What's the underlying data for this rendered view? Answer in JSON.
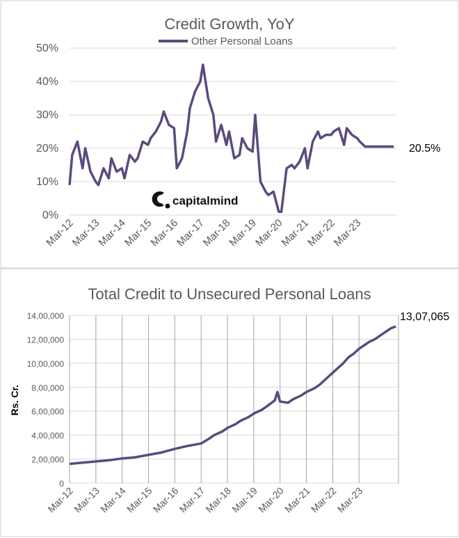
{
  "chart_data": [
    {
      "type": "line",
      "title": "Credit Growth, YoY",
      "legend": "top-center",
      "grid": "horizontal",
      "ylim": [
        0,
        50
      ],
      "y_ticks": [
        "0%",
        "10%",
        "20%",
        "30%",
        "40%",
        "50%"
      ],
      "x_ticks": [
        "Mar-12",
        "Mar-13",
        "Mar-14",
        "Mar-15",
        "Mar-16",
        "Mar-17",
        "Mar-18",
        "Mar-19",
        "Mar-20",
        "Mar-21",
        "Mar-22",
        "Mar-23"
      ],
      "end_label": "20.5%",
      "logo_text": "capitalmind",
      "color": "#5b4a7d",
      "series": [
        {
          "name": "Other Personal Loans",
          "x": [
            2012.2,
            2012.3,
            2012.5,
            2012.7,
            2012.8,
            2013.0,
            2013.2,
            2013.3,
            2013.5,
            2013.7,
            2013.8,
            2014.0,
            2014.2,
            2014.3,
            2014.5,
            2014.7,
            2014.8,
            2015.0,
            2015.2,
            2015.3,
            2015.5,
            2015.7,
            2015.8,
            2016.0,
            2016.2,
            2016.3,
            2016.5,
            2016.7,
            2016.8,
            2017.0,
            2017.2,
            2017.3,
            2017.5,
            2017.7,
            2017.8,
            2018.0,
            2018.2,
            2018.3,
            2018.5,
            2018.7,
            2018.8,
            2019.0,
            2019.2,
            2019.3,
            2019.5,
            2019.7,
            2019.8,
            2020.0,
            2020.2,
            2020.3,
            2020.5,
            2020.7,
            2020.8,
            2021.0,
            2021.2,
            2021.3,
            2021.5,
            2021.7,
            2021.8,
            2022.0,
            2022.2,
            2022.3,
            2022.5,
            2022.7,
            2022.8,
            2023.0,
            2023.2,
            2023.3,
            2023.5,
            2023.7,
            2023.8,
            2024.0,
            2024.2,
            2024.3,
            2024.5,
            2024.6
          ],
          "values": [
            9,
            18,
            22,
            14,
            20,
            13,
            10,
            9,
            14,
            11,
            17,
            13,
            14,
            11,
            18,
            16,
            17,
            22,
            21,
            23,
            25,
            28,
            31,
            27,
            26,
            14,
            17,
            25,
            32,
            37,
            40,
            45,
            35,
            30,
            22,
            27,
            21,
            25,
            17,
            18,
            23,
            20,
            19,
            30,
            10,
            7,
            6,
            7,
            1,
            1,
            14,
            15,
            14,
            16,
            20,
            14,
            22,
            25,
            23,
            24,
            24,
            25,
            26,
            21,
            26,
            24,
            23,
            22,
            20.5,
            20.5,
            20.5,
            20.5,
            20.5,
            20.5,
            20.5,
            20.5
          ]
        }
      ]
    },
    {
      "type": "line",
      "title": "Total Credit to Unsecured Personal Loans",
      "ylabel": "Rs. Cr.",
      "grid": "both",
      "ylim": [
        0,
        1400000
      ],
      "y_ticks": [
        "0",
        "2,00,000",
        "4,00,000",
        "6,00,000",
        "8,00,000",
        "10,00,000",
        "12,00,000",
        "14,00,000"
      ],
      "x_ticks": [
        "Mar-12",
        "Mar-13",
        "Mar-14",
        "Mar-15",
        "Mar-16",
        "Mar-17",
        "Mar-18",
        "Mar-19",
        "Mar-20",
        "Mar-21",
        "Mar-22",
        "Mar-23"
      ],
      "end_label": "13,07,065",
      "color": "#5b4a7d",
      "series": [
        {
          "x": [
            2012.2,
            2012.7,
            2013.2,
            2013.7,
            2014.2,
            2014.7,
            2015.2,
            2015.7,
            2016.2,
            2016.7,
            2017.2,
            2017.5,
            2017.7,
            2018.0,
            2018.2,
            2018.5,
            2018.7,
            2019.0,
            2019.2,
            2019.5,
            2019.7,
            2020.0,
            2020.1,
            2020.2,
            2020.5,
            2020.7,
            2021.0,
            2021.2,
            2021.5,
            2021.7,
            2021.9,
            2022.0,
            2022.2,
            2022.4,
            2022.6,
            2022.8,
            2023.0,
            2023.2,
            2023.4,
            2023.6,
            2023.8,
            2024.0,
            2024.2,
            2024.4,
            2024.6
          ],
          "values": [
            160000,
            170000,
            180000,
            190000,
            205000,
            215000,
            235000,
            255000,
            285000,
            310000,
            330000,
            370000,
            400000,
            430000,
            460000,
            490000,
            520000,
            550000,
            580000,
            610000,
            640000,
            690000,
            760000,
            680000,
            670000,
            700000,
            730000,
            760000,
            790000,
            820000,
            860000,
            880000,
            920000,
            960000,
            1000000,
            1050000,
            1080000,
            1120000,
            1150000,
            1180000,
            1200000,
            1230000,
            1260000,
            1290000,
            1307065
          ]
        }
      ]
    }
  ]
}
